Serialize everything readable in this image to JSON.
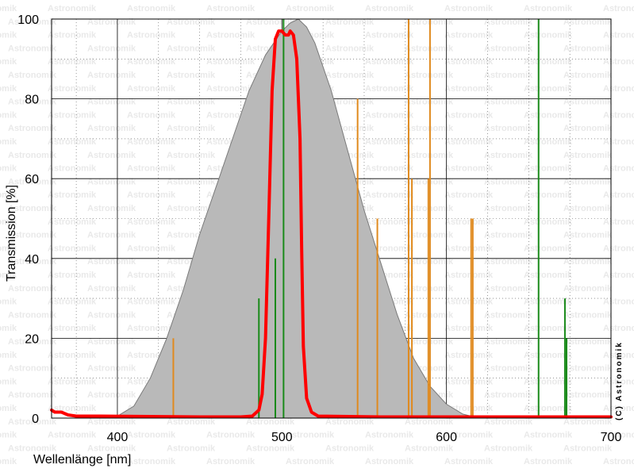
{
  "watermark_text": "Astronomik",
  "copyright": "(C) Astronomik",
  "chart_data": {
    "type": "line",
    "xlabel": "Wellenlänge [nm]",
    "ylabel": "Transmission [%]",
    "xlim": [
      360,
      700
    ],
    "ylim": [
      0,
      100
    ],
    "x_ticks": [
      "400",
      "500",
      "600",
      "700"
    ],
    "y_ticks": [
      "0",
      "20",
      "40",
      "60",
      "80",
      "100"
    ],
    "grid": true,
    "series": [
      {
        "kind": "area",
        "color": "#b9b9b9",
        "points": [
          [
            360,
            0
          ],
          [
            390,
            0
          ],
          [
            400,
            0.5
          ],
          [
            410,
            3
          ],
          [
            420,
            10
          ],
          [
            430,
            20
          ],
          [
            440,
            32
          ],
          [
            450,
            46
          ],
          [
            460,
            58
          ],
          [
            470,
            70
          ],
          [
            480,
            82
          ],
          [
            490,
            91
          ],
          [
            500,
            97
          ],
          [
            505,
            99
          ],
          [
            510,
            100
          ],
          [
            515,
            98
          ],
          [
            520,
            94
          ],
          [
            530,
            82
          ],
          [
            540,
            67
          ],
          [
            550,
            52
          ],
          [
            560,
            39
          ],
          [
            570,
            26
          ],
          [
            580,
            15
          ],
          [
            590,
            8
          ],
          [
            600,
            3.5
          ],
          [
            610,
            1
          ],
          [
            620,
            0
          ],
          [
            700,
            0
          ]
        ]
      },
      {
        "kind": "line",
        "color": "#ff0000",
        "points": [
          [
            360,
            2
          ],
          [
            362,
            1.5
          ],
          [
            366,
            1.5
          ],
          [
            370,
            0.8
          ],
          [
            375,
            0.5
          ],
          [
            390,
            0.5
          ],
          [
            450,
            0.3
          ],
          [
            475,
            0.3
          ],
          [
            482,
            0.5
          ],
          [
            486,
            2
          ],
          [
            488,
            6
          ],
          [
            490,
            20
          ],
          [
            492,
            50
          ],
          [
            494,
            82
          ],
          [
            496,
            95
          ],
          [
            498,
            97
          ],
          [
            500,
            97
          ],
          [
            502,
            96
          ],
          [
            504,
            96
          ],
          [
            505,
            97
          ],
          [
            507,
            96
          ],
          [
            509,
            90
          ],
          [
            511,
            70
          ],
          [
            512,
            42
          ],
          [
            513,
            18
          ],
          [
            515,
            5
          ],
          [
            518,
            1.5
          ],
          [
            522,
            0.5
          ],
          [
            560,
            0.3
          ],
          [
            620,
            0.3
          ],
          [
            700,
            0.3
          ]
        ]
      }
    ],
    "spectral_lines": [
      {
        "color": "#e08a1e",
        "x": 434,
        "y": 20
      },
      {
        "color": "#e08a1e",
        "x": 546,
        "y": 80
      },
      {
        "color": "#e08a1e",
        "x": 558,
        "y": 50
      },
      {
        "color": "#e08a1e",
        "x": 577,
        "y": 100
      },
      {
        "color": "#e08a1e",
        "x": 579,
        "y": 60
      },
      {
        "color": "#e08a1e",
        "x": 589,
        "y": 60
      },
      {
        "color": "#e08a1e",
        "x": 590,
        "y": 100
      },
      {
        "color": "#e08a1e",
        "x": 615,
        "y": 50
      },
      {
        "color": "#e08a1e",
        "x": 616,
        "y": 50
      },
      {
        "color": "#1a8a1a",
        "x": 486,
        "y": 30
      },
      {
        "color": "#1a8a1a",
        "x": 496,
        "y": 40
      },
      {
        "color": "#1a8a1a",
        "x": 501,
        "y": 100
      },
      {
        "color": "#1a8a1a",
        "x": 656,
        "y": 100
      },
      {
        "color": "#1a8a1a",
        "x": 672,
        "y": 30
      },
      {
        "color": "#1a8a1a",
        "x": 673,
        "y": 20
      }
    ]
  }
}
